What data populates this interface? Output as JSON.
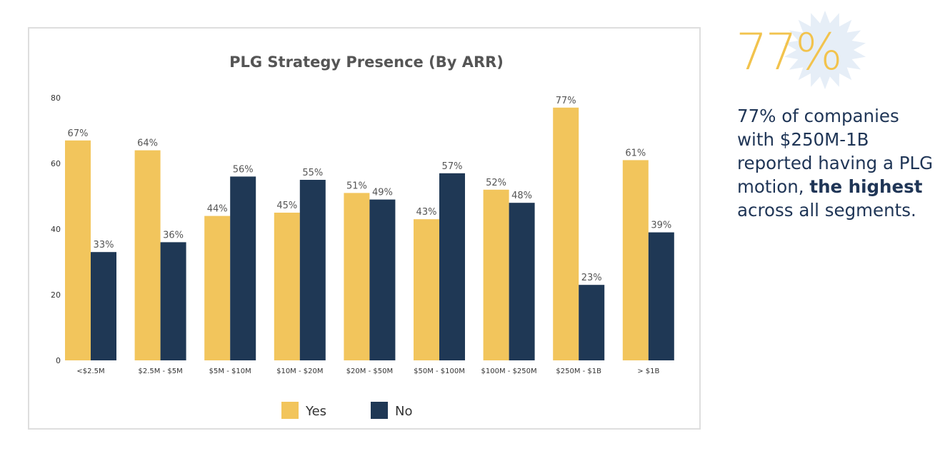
{
  "chart_data": {
    "type": "bar",
    "title": "PLG Strategy Presence (By ARR)",
    "categories": [
      "<$2.5M",
      "$2.5M - $5M",
      "$5M - $10M",
      "$10M - $20M",
      "$20M - $50M",
      "$50M - $100M",
      "$100M - $250M",
      "$250M - $1B",
      "> $1B"
    ],
    "series": [
      {
        "name": "Yes",
        "values": [
          67,
          64,
          44,
          45,
          51,
          43,
          52,
          77,
          61
        ],
        "labels": [
          "67%",
          "64%",
          "44%",
          "45%",
          "51%",
          "43%",
          "52%",
          "77%",
          "61%"
        ],
        "color": "#f2c55c"
      },
      {
        "name": "No",
        "values": [
          33,
          36,
          56,
          55,
          49,
          57,
          48,
          23,
          39
        ],
        "labels": [
          "33%",
          "36%",
          "56%",
          "55%",
          "49%",
          "57%",
          "48%",
          "23%",
          "39%"
        ],
        "color": "#1f3855"
      }
    ],
    "ylim": [
      0,
      80
    ],
    "yticks": [
      0,
      20,
      40,
      60,
      80
    ],
    "grid": false,
    "legend": "bottom-center"
  },
  "callout": {
    "stat": "77%",
    "text_parts": [
      {
        "text": "77% of companies with $250M-1B reported having a PLG motion, ",
        "bold": false
      },
      {
        "text": "the highest",
        "bold": true
      },
      {
        "text": " across all segments.",
        "bold": false
      }
    ]
  },
  "colors": {
    "accent_yellow": "#f2c34d",
    "navy": "#1f3556",
    "starburst": "#e6eef7"
  }
}
